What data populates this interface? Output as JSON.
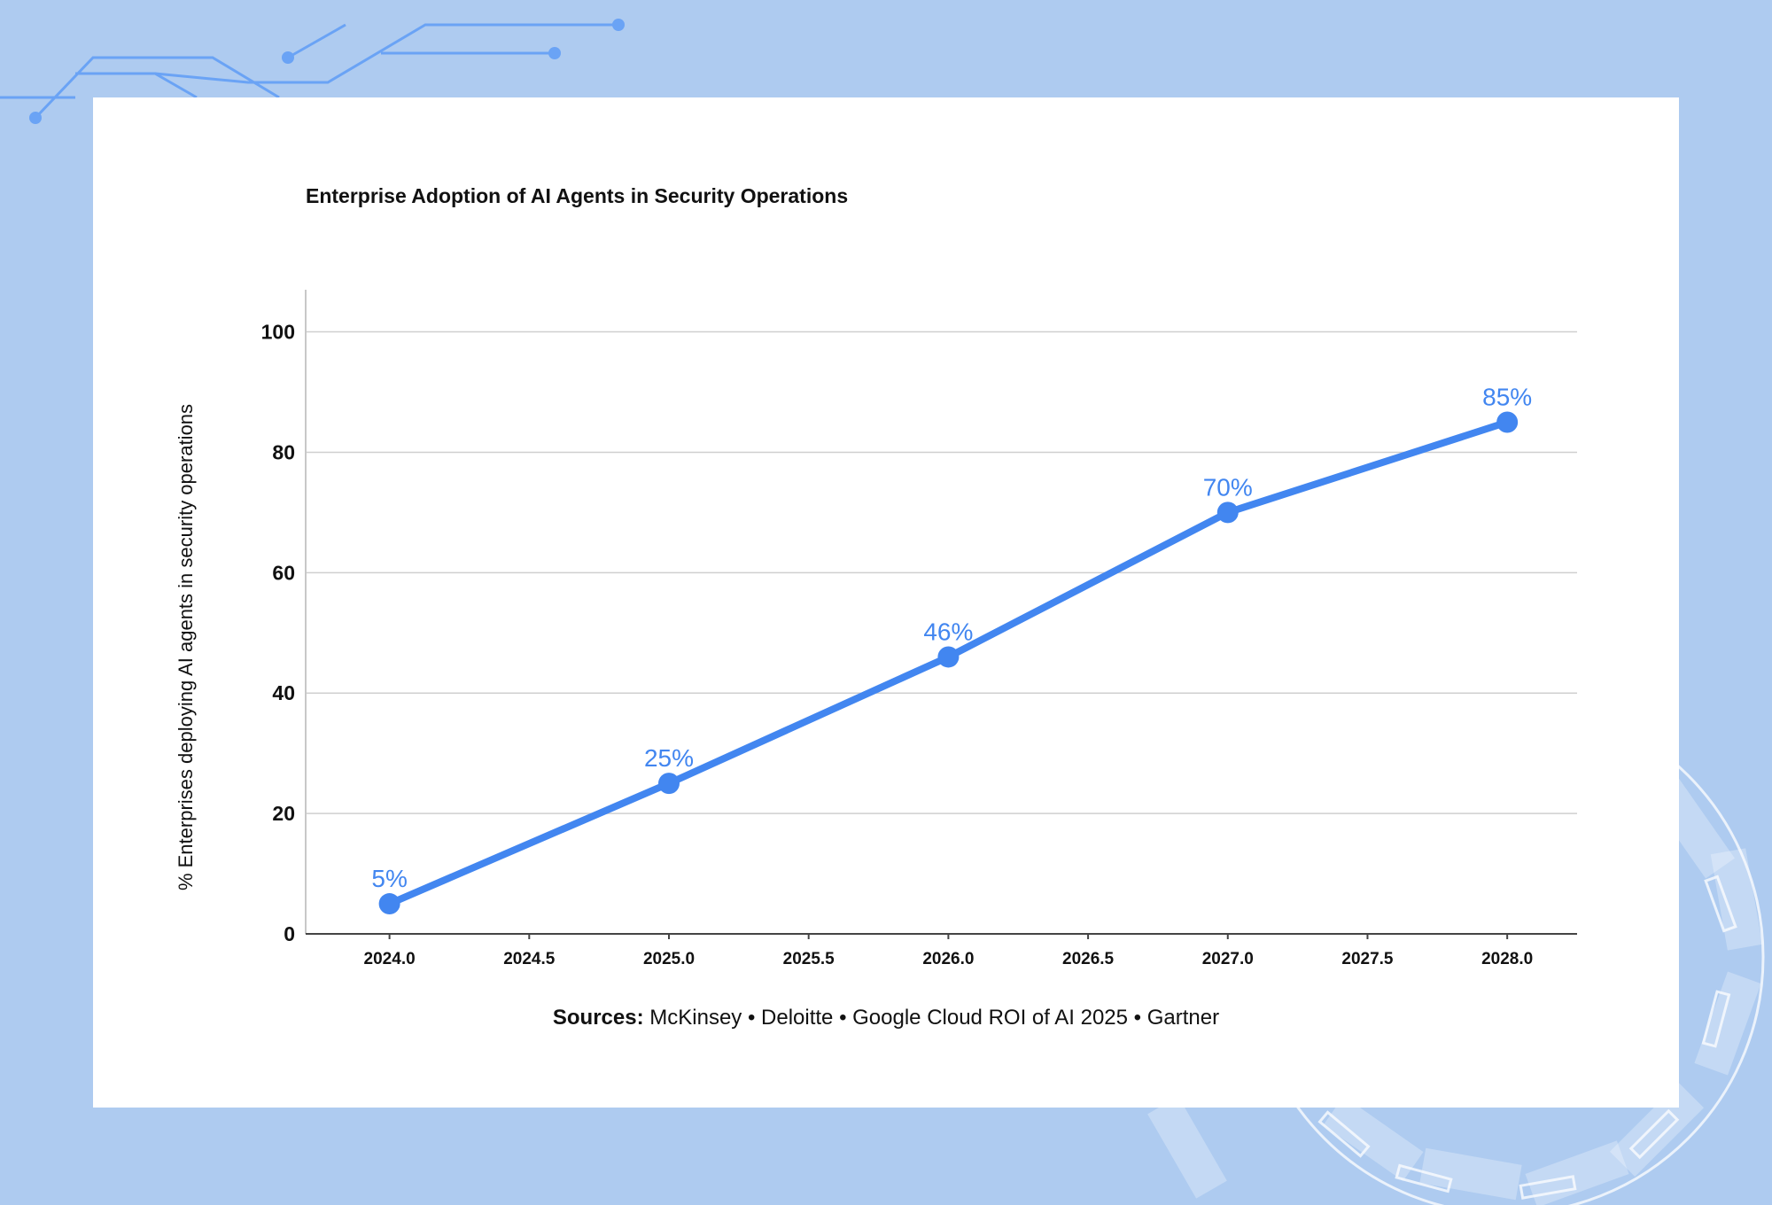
{
  "colors": {
    "background": "#aecbf0",
    "card": "#ffffff",
    "line": "#4286f0",
    "circuit": "#6aa3f5",
    "grid": "#cfcfcf",
    "axis": "#444444"
  },
  "chart_data": {
    "type": "line",
    "title": "Enterprise Adoption of AI Agents in Security Operations",
    "xlabel": "",
    "ylabel": "% Enterprises deploying AI agents in security operations",
    "x": [
      2024.0,
      2025.0,
      2026.0,
      2027.0,
      2028.0
    ],
    "series": [
      {
        "values": [
          5,
          25,
          46,
          70,
          85
        ]
      }
    ],
    "data_labels": [
      "5%",
      "25%",
      "46%",
      "70%",
      "85%"
    ],
    "xlim": [
      2023.7,
      2028.25
    ],
    "ylim": [
      0,
      107
    ],
    "x_ticks": [
      "2024.0",
      "2024.5",
      "2025.0",
      "2025.5",
      "2026.0",
      "2026.5",
      "2027.0",
      "2027.5",
      "2028.0"
    ],
    "y_ticks": [
      "0",
      "20",
      "40",
      "60",
      "80",
      "100"
    ],
    "grid": true,
    "grid_axis": "y",
    "legend": "none"
  },
  "footer": {
    "sources_label": "Sources:",
    "sources_text": " McKinsey • Deloitte • Google Cloud ROI of AI 2025 • Gartner"
  }
}
